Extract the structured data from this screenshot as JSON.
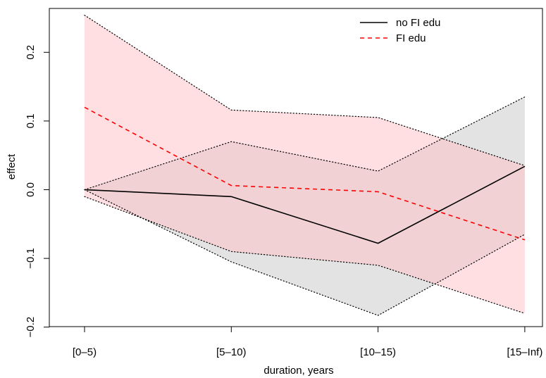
{
  "chart_data": {
    "type": "line",
    "title": "",
    "xlabel": "duration, years",
    "ylabel": "effect",
    "categories": [
      "[0–5)",
      "[5–10)",
      "[10–15)",
      "[15–Inf)"
    ],
    "ylim": [
      -0.2,
      0.25
    ],
    "yticks": [
      -0.2,
      -0.1,
      0.0,
      0.1,
      0.2
    ],
    "ytick_labels": [
      "−0.2",
      "−0.1",
      "0.0",
      "0.1",
      "0.2"
    ],
    "grid": false,
    "legend": {
      "position": "top-right"
    },
    "series": [
      {
        "name": "no FI edu",
        "style": "solid",
        "color": "#000000",
        "band_color": "#e3e3e3",
        "values": [
          0.0,
          -0.01,
          -0.078,
          0.034
        ],
        "lower": [
          0.0,
          -0.105,
          -0.183,
          -0.065
        ],
        "upper": [
          0.0,
          0.07,
          0.027,
          0.135
        ]
      },
      {
        "name": "FI edu",
        "style": "dashed",
        "color": "#ff0000",
        "band_color": "#ffc0c6",
        "values": [
          0.12,
          0.006,
          -0.003,
          -0.073
        ],
        "lower": [
          -0.01,
          -0.09,
          -0.11,
          -0.18
        ],
        "upper": [
          0.254,
          0.116,
          0.105,
          0.035
        ]
      }
    ]
  }
}
